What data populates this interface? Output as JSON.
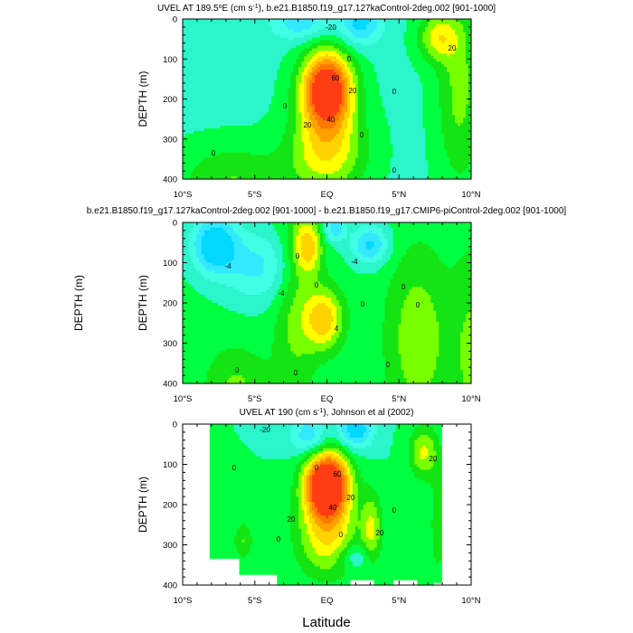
{
  "chart_data": [
    {
      "type": "contour",
      "title_parts": [
        "UVEL AT 189.5",
        "o",
        "E (cm s",
        "-1",
        "), b.e21.B1850.f19_g17.127kaControl-2deg.002 [901-1000]"
      ],
      "xlabel": "",
      "ylabel": "DEPTH (m)",
      "xlim": [
        -10,
        10
      ],
      "ylim": [
        400,
        0
      ],
      "xticks": [
        "10°S",
        "5°S",
        "EQ",
        "5°N",
        "10°N"
      ],
      "yticks": [
        "0",
        "100",
        "200",
        "300",
        "400"
      ],
      "contour_labels": [
        "-20",
        "0",
        "0",
        "20",
        "60",
        "40",
        "20",
        "0",
        "0",
        "0",
        "0",
        "20",
        "0"
      ],
      "features": [
        {
          "x": 0,
          "depth": 175,
          "value": 80
        },
        {
          "x": 7.7,
          "depth": 50,
          "value": 30
        },
        {
          "x": 2.2,
          "depth": 20,
          "value": -25
        }
      ]
    },
    {
      "type": "contour",
      "title_parts": [
        "b.e21.B1850.f19_g17.127kaControl-2deg.002 [901-1000] - b.e21.B1850.f19_g17.CMIP6-piControl-2deg.002 [901-1000]"
      ],
      "xlabel": "",
      "ylabel": "DEPTH (m)",
      "xlim": [
        -10,
        10
      ],
      "ylim": [
        400,
        0
      ],
      "xticks": [
        "10°S",
        "5°S",
        "EQ",
        "5°N",
        "10°N"
      ],
      "yticks": [
        "0",
        "100",
        "200",
        "300",
        "400"
      ],
      "contour_labels": [
        "-4",
        "0",
        "-4",
        "0",
        "-4",
        "0",
        "0",
        "0",
        "4",
        "0",
        "0",
        "0",
        "0"
      ],
      "features": [
        {
          "x": -1.3,
          "depth": 60,
          "value": 6
        },
        {
          "x": -0.2,
          "depth": 230,
          "value": 7
        },
        {
          "x": 3.0,
          "depth": 60,
          "value": -5
        }
      ]
    },
    {
      "type": "contour",
      "title_parts": [
        "UVEL AT 190 (cm s",
        "-1",
        "), Johnson et al (2002)"
      ],
      "xlabel": "Latitude",
      "ylabel": "DEPTH (m)",
      "xlim": [
        -10,
        10
      ],
      "ylim": [
        400,
        0
      ],
      "xticks": [
        "10°S",
        "5°S",
        "EQ",
        "5°N",
        "10°N"
      ],
      "yticks": [
        "0",
        "100",
        "200",
        "300",
        "400"
      ],
      "contour_labels": [
        "-20",
        "0",
        "0",
        "60",
        "20",
        "40",
        "20",
        "0",
        "20",
        "0",
        "0",
        "20"
      ],
      "features": [
        {
          "x": 0,
          "depth": 150,
          "value": 95
        },
        {
          "x": 7,
          "depth": 60,
          "value": 30
        },
        {
          "x": 3,
          "depth": 250,
          "value": 30
        }
      ]
    }
  ]
}
